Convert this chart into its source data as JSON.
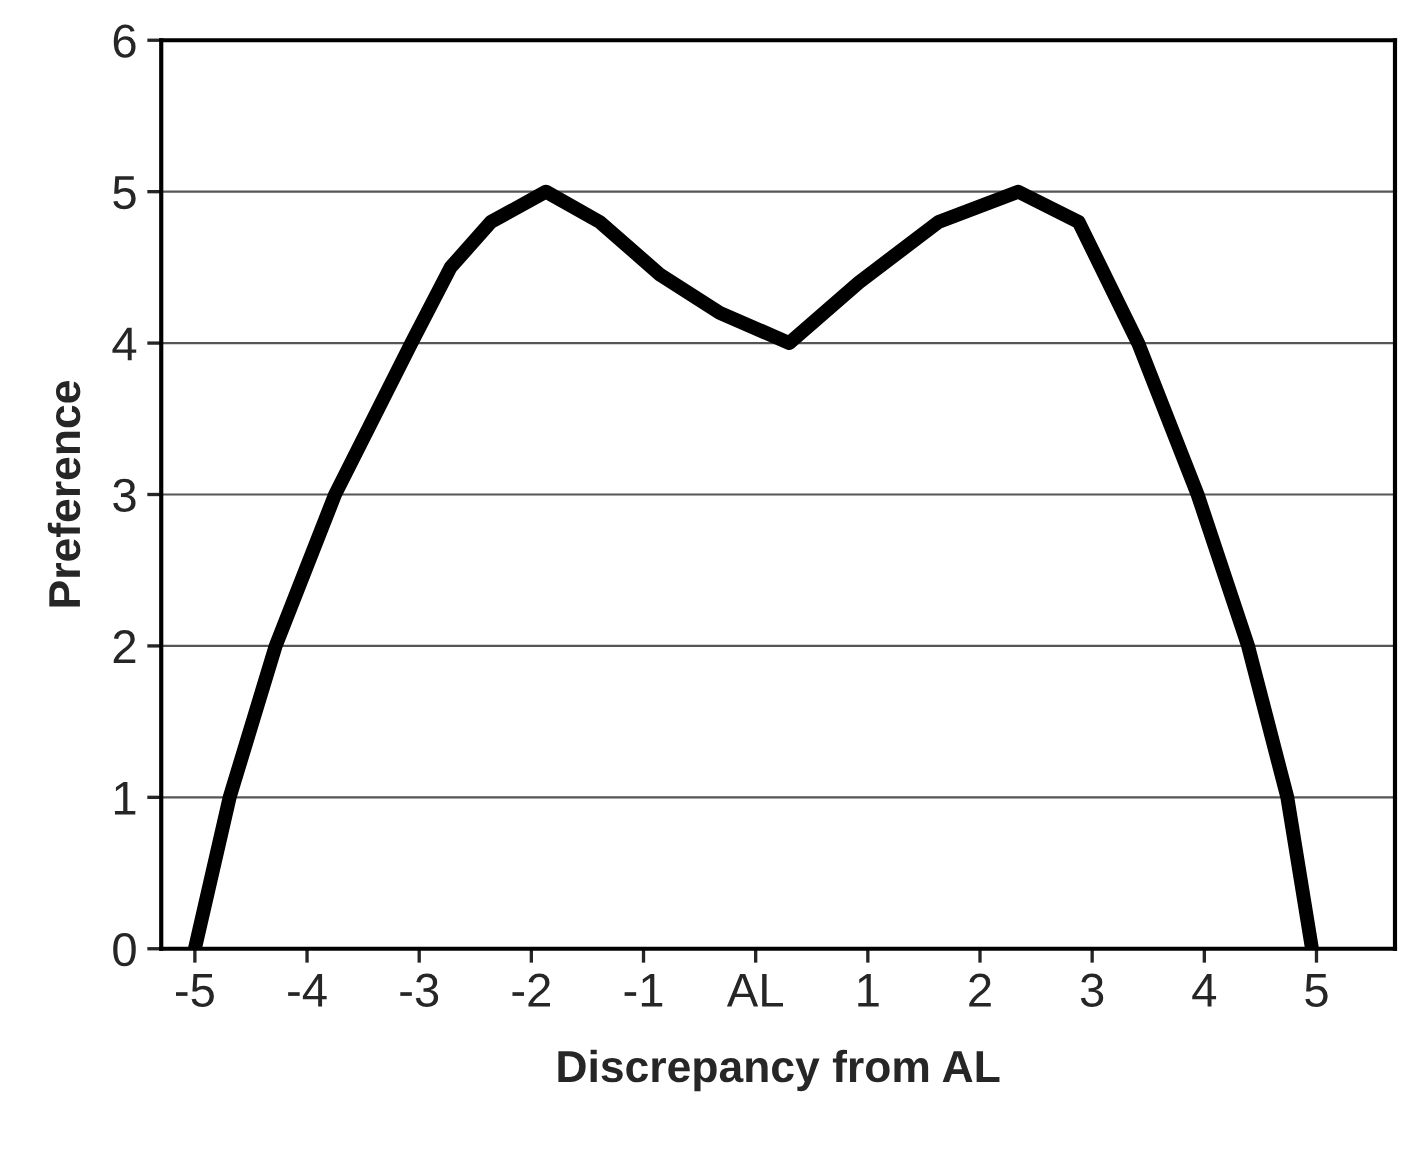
{
  "chart_data": {
    "type": "line",
    "xlabel": "Discrepancy from AL",
    "ylabel": "Preference",
    "x": [
      -5.0,
      -4.69,
      -4.28,
      -3.75,
      -3.07,
      -2.72,
      -2.36,
      -1.87,
      -1.39,
      -0.85,
      -0.32,
      0.3,
      0.92,
      1.63,
      2.34,
      2.88,
      3.41,
      3.94,
      4.39,
      4.74,
      4.96
    ],
    "series": [
      {
        "color": "#000000",
        "values": [
          0,
          1,
          2,
          3,
          4,
          4.5,
          4.8,
          5,
          4.8,
          4.45,
          4.2,
          4.0,
          4.4,
          4.8,
          5,
          4.8,
          4.0,
          3.0,
          2.0,
          1.0,
          0
        ]
      }
    ],
    "xlim": [
      -5.3,
      5.7
    ],
    "ylim": [
      0,
      6
    ],
    "xticks": [
      -5,
      -4,
      -3,
      -2,
      -1,
      {
        "value": 0,
        "label": "AL"
      },
      1,
      2,
      3,
      4,
      5
    ],
    "yticks": [
      0,
      1,
      2,
      3,
      4,
      5,
      6
    ],
    "grid": "y",
    "marker": "none",
    "line_style": "solid"
  }
}
